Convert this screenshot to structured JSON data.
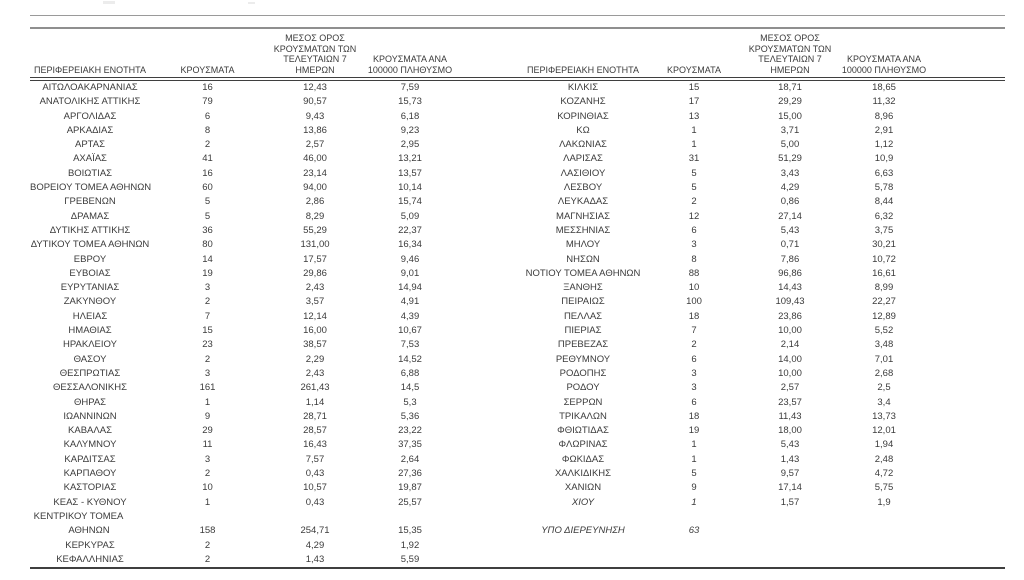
{
  "table": {
    "header": {
      "region": "ΠΕΡΙΦΕΡΕΙΑΚΗ ΕΝΟΤΗΤΑ",
      "cases": "ΚΡΟΥΣΜΑΤΑ",
      "avg7": "ΜΕΣΟΣ ΟΡΟΣ\nΚΡΟΥΣΜΑΤΩΝ ΤΩΝ\nΤΕΛΕΥΤΑΙΩΝ 7 ΗΜΕΡΩΝ",
      "per100k": "ΚΡΟΥΣΜΑΤΑ ΑΝΑ\n100000 ΠΛΗΘΥΣΜΟ"
    },
    "left_rows": [
      [
        "ΑΙΤΩΛΟΑΚΑΡΝΑΝΙΑΣ",
        "16",
        "12,43",
        "7,59",
        ""
      ],
      [
        "ΑΝΑΤΟΛΙΚΗΣ ΑΤΤΙΚΗΣ",
        "79",
        "90,57",
        "15,73",
        ""
      ],
      [
        "ΑΡΓΟΛΙΔΑΣ",
        "6",
        "9,43",
        "6,18",
        ""
      ],
      [
        "ΑΡΚΑΔΙΑΣ",
        "8",
        "13,86",
        "9,23",
        ""
      ],
      [
        "ΑΡΤΑΣ",
        "2",
        "2,57",
        "2,95",
        ""
      ],
      [
        "ΑΧΑΪΑΣ",
        "41",
        "46,00",
        "13,21",
        ""
      ],
      [
        "ΒΟΙΩΤΙΑΣ",
        "16",
        "23,14",
        "13,57",
        ""
      ],
      [
        "ΒΟΡΕΙΟΥ ΤΟΜΕΑ ΑΘΗΝΩΝ",
        "60",
        "94,00",
        "10,14",
        ""
      ],
      [
        "ΓΡΕΒΕΝΩΝ",
        "5",
        "2,86",
        "15,74",
        ""
      ],
      [
        "ΔΡΑΜΑΣ",
        "5",
        "8,29",
        "5,09",
        ""
      ],
      [
        "ΔΥΤΙΚΗΣ ΑΤΤΙΚΗΣ",
        "36",
        "55,29",
        "22,37",
        ""
      ],
      [
        "ΔΥΤΙΚΟΥ ΤΟΜΕΑ ΑΘΗΝΩΝ",
        "80",
        "131,00",
        "16,34",
        ""
      ],
      [
        "ΕΒΡΟΥ",
        "14",
        "17,57",
        "9,46",
        ""
      ],
      [
        "ΕΥΒΟΙΑΣ",
        "19",
        "29,86",
        "9,01",
        ""
      ],
      [
        "ΕΥΡΥΤΑΝΙΑΣ",
        "3",
        "2,43",
        "14,94",
        ""
      ],
      [
        "ΖΑΚΥΝΘΟΥ",
        "2",
        "3,57",
        "4,91",
        ""
      ],
      [
        "ΗΛΕΙΑΣ",
        "7",
        "12,14",
        "4,39",
        ""
      ],
      [
        "ΗΜΑΘΙΑΣ",
        "15",
        "16,00",
        "10,67",
        ""
      ],
      [
        "ΗΡΑΚΛΕΙΟΥ",
        "23",
        "38,57",
        "7,53",
        ""
      ],
      [
        "ΘΑΣΟΥ",
        "2",
        "2,29",
        "14,52",
        ""
      ],
      [
        "ΘΕΣΠΡΩΤΙΑΣ",
        "3",
        "2,43",
        "6,88",
        ""
      ],
      [
        "ΘΕΣΣΑΛΟΝΙΚΗΣ",
        "161",
        "261,43",
        "14,5",
        ""
      ],
      [
        "ΘΗΡΑΣ",
        "1",
        "1,14",
        "5,3",
        ""
      ],
      [
        "ΙΩΑΝΝΙΝΩΝ",
        "9",
        "28,71",
        "5,36",
        ""
      ],
      [
        "ΚΑΒΑΛΑΣ",
        "29",
        "28,57",
        "23,22",
        ""
      ],
      [
        "ΚΑΛΥΜΝΟΥ",
        "11",
        "16,43",
        "37,35",
        ""
      ],
      [
        "ΚΑΡΔΙΤΣΑΣ",
        "3",
        "7,57",
        "2,64",
        ""
      ],
      [
        "ΚΑΡΠΑΘΟΥ",
        "2",
        "0,43",
        "27,36",
        ""
      ],
      [
        "ΚΑΣΤΟΡΙΑΣ",
        "10",
        "10,57",
        "19,87",
        ""
      ],
      [
        "ΚΕΑΣ - ΚΥΘΝΟΥ",
        "1",
        "0,43",
        "25,57",
        ""
      ],
      [
        "ΚΕΝΤΡΙΚΟΥ ΤΟΜΕΑ",
        "",
        "",
        "",
        "wrap1"
      ],
      [
        "ΑΘΗΝΩΝ",
        "158",
        "254,71",
        "15,35",
        "wrap2"
      ],
      [
        "ΚΕΡΚΥΡΑΣ",
        "2",
        "4,29",
        "1,92",
        ""
      ],
      [
        "ΚΕΦΑΛΛΗΝΙΑΣ",
        "2",
        "1,43",
        "5,59",
        ""
      ]
    ],
    "right_rows": [
      [
        "ΚΙΛΚΙΣ",
        "15",
        "18,71",
        "18,65",
        ""
      ],
      [
        "ΚΟΖΑΝΗΣ",
        "17",
        "29,29",
        "11,32",
        ""
      ],
      [
        "ΚΟΡΙΝΘΙΑΣ",
        "13",
        "15,00",
        "8,96",
        ""
      ],
      [
        "ΚΩ",
        "1",
        "3,71",
        "2,91",
        ""
      ],
      [
        "ΛΑΚΩΝΙΑΣ",
        "1",
        "5,00",
        "1,12",
        ""
      ],
      [
        "ΛΑΡΙΣΑΣ",
        "31",
        "51,29",
        "10,9",
        ""
      ],
      [
        "ΛΑΣΙΘΙΟΥ",
        "5",
        "3,43",
        "6,63",
        ""
      ],
      [
        "ΛΕΣΒΟΥ",
        "5",
        "4,29",
        "5,78",
        ""
      ],
      [
        "ΛΕΥΚΑΔΑΣ",
        "2",
        "0,86",
        "8,44",
        ""
      ],
      [
        "ΜΑΓΝΗΣΙΑΣ",
        "12",
        "27,14",
        "6,32",
        ""
      ],
      [
        "ΜΕΣΣΗΝΙΑΣ",
        "6",
        "5,43",
        "3,75",
        ""
      ],
      [
        "ΜΗΛΟΥ",
        "3",
        "0,71",
        "30,21",
        ""
      ],
      [
        "ΝΗΣΩΝ",
        "8",
        "7,86",
        "10,72",
        ""
      ],
      [
        "ΝΟΤΙΟΥ ΤΟΜΕΑ ΑΘΗΝΩΝ",
        "88",
        "96,86",
        "16,61",
        ""
      ],
      [
        "ΞΑΝΘΗΣ",
        "10",
        "14,43",
        "8,99",
        ""
      ],
      [
        "ΠΕΙΡΑΙΩΣ",
        "100",
        "109,43",
        "22,27",
        ""
      ],
      [
        "ΠΕΛΛΑΣ",
        "18",
        "23,86",
        "12,89",
        ""
      ],
      [
        "ΠΙΕΡΙΑΣ",
        "7",
        "10,00",
        "5,52",
        ""
      ],
      [
        "ΠΡΕΒΕΖΑΣ",
        "2",
        "2,14",
        "3,48",
        ""
      ],
      [
        "ΡΕΘΥΜΝΟΥ",
        "6",
        "14,00",
        "7,01",
        ""
      ],
      [
        "ΡΟΔΟΠΗΣ",
        "3",
        "10,00",
        "2,68",
        ""
      ],
      [
        "ΡΟΔΟΥ",
        "3",
        "2,57",
        "2,5",
        ""
      ],
      [
        "ΣΕΡΡΩΝ",
        "6",
        "23,57",
        "3,4",
        ""
      ],
      [
        "ΤΡΙΚΑΛΩΝ",
        "18",
        "11,43",
        "13,73",
        ""
      ],
      [
        "ΦΘΙΩΤΙΔΑΣ",
        "19",
        "18,00",
        "12,01",
        ""
      ],
      [
        "ΦΛΩΡΙΝΑΣ",
        "1",
        "5,43",
        "1,94",
        ""
      ],
      [
        "ΦΩΚΙΔΑΣ",
        "1",
        "1,43",
        "2,48",
        ""
      ],
      [
        "ΧΑΛΚΙΔΙΚΗΣ",
        "5",
        "9,57",
        "4,72",
        ""
      ],
      [
        "ΧΑΝΙΩΝ",
        "9",
        "17,14",
        "5,75",
        ""
      ],
      [
        "ΧΙΟΥ",
        "1",
        "1,57",
        "1,9",
        "italic2"
      ],
      [
        "",
        "",
        "",
        "",
        ""
      ],
      [
        "ΥΠΟ ΔΙΕΡΕΥΝΗΣΗ",
        "63",
        "",
        "",
        "italic2"
      ],
      [
        "",
        "",
        "",
        "",
        ""
      ],
      [
        "",
        "",
        "",
        "",
        ""
      ]
    ]
  }
}
